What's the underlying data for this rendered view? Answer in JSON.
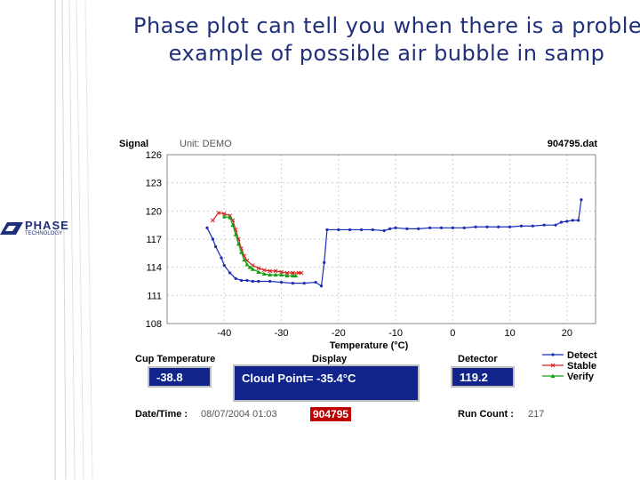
{
  "slide": {
    "title_line1": "Phase plot can tell you when there is a proble",
    "title_line2": "example of possible air bubble in samp",
    "logo_text": "PHASE",
    "logo_sub": "TECHNOLOGY"
  },
  "chart_data": {
    "type": "line",
    "title": "",
    "ylabel": "Signal",
    "xlabel": "Temperature (°C)",
    "unit_label": "Unit: DEMO",
    "file_label": "904795.dat",
    "xlim": [
      -50,
      25
    ],
    "ylim": [
      108,
      126
    ],
    "x_ticks": [
      -40,
      -30,
      -20,
      -10,
      0,
      10,
      20
    ],
    "x_tick_labels": [
      "-40",
      "-30",
      "-20",
      "-10",
      "0",
      "10",
      "20"
    ],
    "y_ticks": [
      108,
      111,
      114,
      117,
      120,
      123,
      126
    ],
    "y_tick_labels": [
      "108",
      "111",
      "114",
      "117",
      "120",
      "123",
      "126"
    ],
    "legend_position": "bottom-right",
    "series": [
      {
        "name": "Detect",
        "color": "#1a2bb8",
        "marker": "dot",
        "x": [
          -43,
          -42,
          -41.5,
          -40.5,
          -40,
          -39,
          -38,
          -37,
          -36,
          -35,
          -34,
          -32,
          -30,
          -28,
          -26,
          -24,
          -23,
          -22.5,
          -22,
          -20,
          -18,
          -16,
          -14,
          -12,
          -11,
          -10,
          -8,
          -6,
          -4,
          -2,
          0,
          2,
          4,
          6,
          8,
          10,
          12,
          14,
          16,
          18,
          19,
          20,
          21,
          22,
          22.5
        ],
        "y": [
          118.2,
          117.0,
          116.2,
          115.0,
          114.2,
          113.4,
          112.8,
          112.6,
          112.6,
          112.5,
          112.5,
          112.5,
          112.4,
          112.3,
          112.3,
          112.4,
          112.0,
          114.5,
          118.0,
          118.0,
          118.0,
          118.0,
          118.0,
          117.9,
          118.1,
          118.2,
          118.1,
          118.1,
          118.2,
          118.2,
          118.2,
          118.2,
          118.3,
          118.3,
          118.3,
          118.3,
          118.4,
          118.4,
          118.5,
          118.5,
          118.8,
          118.9,
          119.0,
          119.0,
          121.2
        ]
      },
      {
        "name": "Stable",
        "color": "#d42020",
        "marker": "cross",
        "x": [
          -42,
          -41,
          -40,
          -39,
          -38.5,
          -38,
          -37.5,
          -37,
          -36.5,
          -36,
          -35,
          -34,
          -33,
          -32,
          -31,
          -30,
          -29,
          -28,
          -27,
          -26.5
        ],
        "y": [
          119.0,
          119.8,
          119.7,
          119.5,
          119.0,
          118.0,
          117.0,
          116.0,
          115.2,
          114.7,
          114.2,
          113.9,
          113.7,
          113.6,
          113.6,
          113.5,
          113.4,
          113.4,
          113.4,
          113.4
        ]
      },
      {
        "name": "Verify",
        "color": "#10a010",
        "marker": "tri",
        "x": [
          -40,
          -39,
          -38.5,
          -38,
          -37.5,
          -37,
          -36.5,
          -36,
          -35.5,
          -35,
          -34,
          -33,
          -32,
          -31,
          -30,
          -29,
          -28,
          -27.5
        ],
        "y": [
          119.4,
          119.3,
          118.5,
          117.5,
          116.5,
          115.6,
          114.8,
          114.3,
          114.0,
          113.8,
          113.5,
          113.3,
          113.2,
          113.2,
          113.2,
          113.1,
          113.1,
          113.1
        ]
      }
    ]
  },
  "panel": {
    "cup_temperature_label": "Cup Temperature",
    "cup_temperature_value": "-38.8",
    "display_label": "Display",
    "display_value": "Cloud Point= -35.4°C",
    "detector_label": "Detector",
    "detector_value": "119.2",
    "datetime_label": "Date/Time :",
    "datetime_value": "08/07/2004 01:03",
    "file_badge": "904795",
    "run_count_label": "Run Count :",
    "run_count_value": "217"
  }
}
